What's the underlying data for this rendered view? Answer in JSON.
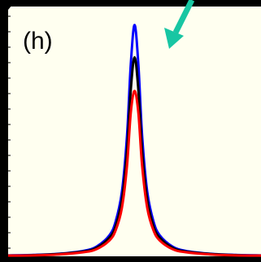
{
  "panel_label": "(h)",
  "colors": {
    "background": "#000000",
    "plot_bg": "#fffff0",
    "arrow": "#18c6a3"
  },
  "chart_data": {
    "type": "line",
    "title": "",
    "xlabel": "",
    "ylabel": "",
    "xlim": [
      -1,
      1
    ],
    "ylim": [
      0,
      1.08
    ],
    "grid": false,
    "legend": "none",
    "x": [
      -1.0,
      -0.8,
      -0.6,
      -0.4,
      -0.3,
      -0.2,
      -0.15,
      -0.1,
      -0.06,
      -0.03,
      0.0,
      0.03,
      0.06,
      0.1,
      0.15,
      0.2,
      0.3,
      0.4,
      0.6,
      0.8,
      1.0
    ],
    "series": [
      {
        "color": "#0000ff",
        "values": [
          0.004,
          0.006,
          0.011,
          0.024,
          0.042,
          0.09,
          0.15,
          0.28,
          0.52,
          0.83,
          1.0,
          0.83,
          0.52,
          0.28,
          0.15,
          0.09,
          0.042,
          0.024,
          0.011,
          0.006,
          0.004
        ]
      },
      {
        "color": "#000000",
        "values": [
          0.003,
          0.005,
          0.01,
          0.021,
          0.037,
          0.08,
          0.13,
          0.245,
          0.455,
          0.72,
          0.86,
          0.72,
          0.455,
          0.245,
          0.13,
          0.08,
          0.037,
          0.021,
          0.01,
          0.005,
          0.003
        ]
      },
      {
        "color": "#ff0000",
        "values": [
          0.003,
          0.004,
          0.008,
          0.018,
          0.031,
          0.068,
          0.112,
          0.21,
          0.39,
          0.62,
          0.715,
          0.62,
          0.39,
          0.21,
          0.112,
          0.068,
          0.031,
          0.018,
          0.008,
          0.004,
          0.003
        ]
      }
    ]
  }
}
